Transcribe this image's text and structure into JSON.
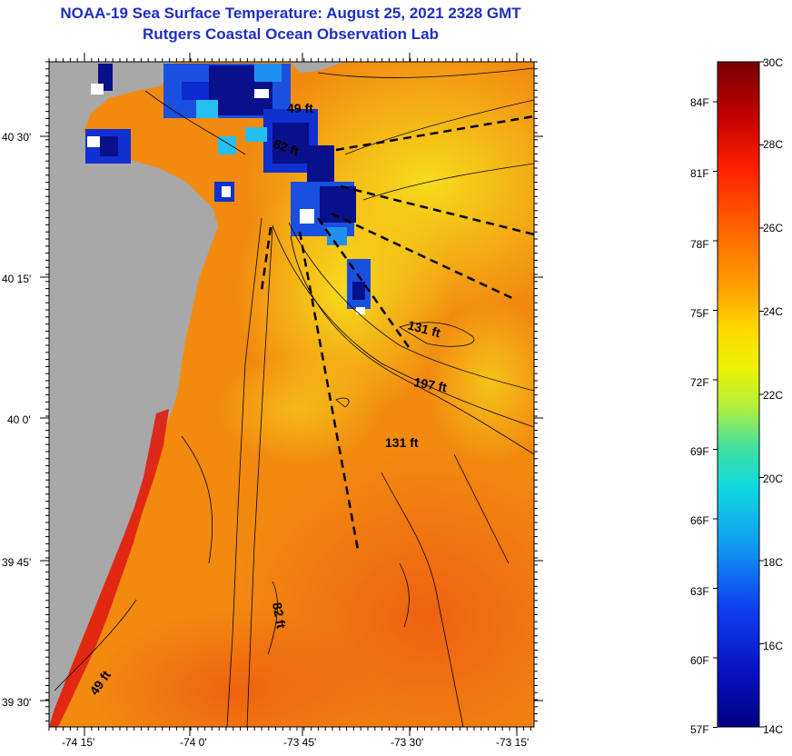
{
  "header": {
    "title": "NOAA-19 Sea Surface Temperature:  August 25, 2021 2328 GMT",
    "subtitle": "Rutgers Coastal Ocean Observation Lab"
  },
  "map": {
    "lat_labels": [
      "40 30'",
      "40 15'",
      "40 0'",
      "39 45'",
      "39 30'"
    ],
    "lon_labels": [
      "-74 15'",
      "-74 0'",
      "-73 45'",
      "-73 30'",
      "-73 15'"
    ],
    "depth_labels": {
      "d49_top": "49 ft",
      "d82_top": "82 ft",
      "d131_a": "131 ft",
      "d197": "197 ft",
      "d131_b": "131 ft",
      "d82_bottom": "82 ft",
      "d49_bottom": "49 ft"
    },
    "colors": {
      "land": "#a8a8a8",
      "cloud_blue": "#1030d0",
      "dark_blue": "#08108a",
      "orange": "#f28a10",
      "yellow": "#f6d818",
      "red": "#e02010"
    }
  },
  "colorbar": {
    "celsius_labels": [
      "30C",
      "28C",
      "26C",
      "24C",
      "22C",
      "20C",
      "18C",
      "16C",
      "14C"
    ],
    "fahrenheit_labels": [
      "84F",
      "81F",
      "78F",
      "75F",
      "72F",
      "69F",
      "66F",
      "63F",
      "60F",
      "57F"
    ]
  }
}
